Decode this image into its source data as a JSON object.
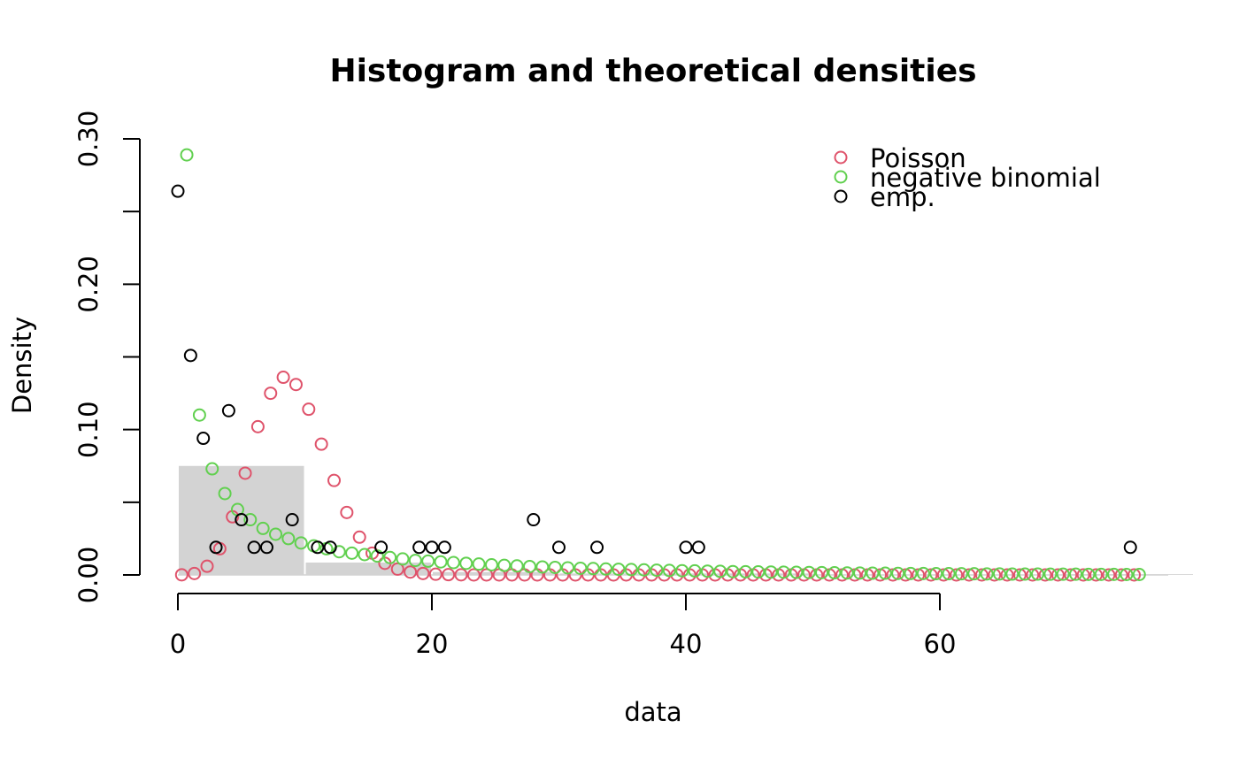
{
  "chart_data": {
    "type": "scatter",
    "title": "Histogram and theoretical densities",
    "xlabel": "data",
    "ylabel": "Density",
    "xlim": [
      -3,
      78
    ],
    "ylim": [
      0,
      0.3
    ],
    "x_ticks": [
      0,
      20,
      40,
      60
    ],
    "x_tick_labels": [
      "0",
      "20",
      "40",
      "60"
    ],
    "y_ticks": [
      0,
      0.05,
      0.1,
      0.15,
      0.2,
      0.25,
      0.3
    ],
    "y_tick_labels": [
      "0.00",
      "",
      "0.10",
      "",
      "0.20",
      "",
      "0.30"
    ],
    "grid": false,
    "legend_position": "top-right",
    "histogram": {
      "color": "#d3d3d3",
      "bins": [
        {
          "x0": 0,
          "x1": 10,
          "density": 0.075
        },
        {
          "x0": 10,
          "x1": 20,
          "density": 0.0085
        },
        {
          "x0": 20,
          "x1": 30,
          "density": 0.002
        },
        {
          "x0": 30,
          "x1": 40,
          "density": 0.001
        },
        {
          "x0": 40,
          "x1": 50,
          "density": 0.001
        },
        {
          "x0": 50,
          "x1": 60,
          "density": 0.0
        },
        {
          "x0": 60,
          "x1": 70,
          "density": 0.0
        },
        {
          "x0": 70,
          "x1": 80,
          "density": 0.0005
        }
      ]
    },
    "series": [
      {
        "name": "Poisson",
        "color": "#df536b",
        "x_offset": 0.3,
        "x_start": 0,
        "x_end": 75,
        "values": [
          0.0001,
          0.001,
          0.006,
          0.018,
          0.04,
          0.07,
          0.102,
          0.125,
          0.136,
          0.131,
          0.114,
          0.09,
          0.065,
          0.043,
          0.026,
          0.015,
          0.008,
          0.004,
          0.002,
          0.001,
          0.0005,
          0.0002,
          0.0001,
          0,
          0,
          0,
          0,
          0,
          0,
          0,
          0,
          0,
          0,
          0,
          0,
          0,
          0,
          0,
          0,
          0,
          0,
          0,
          0,
          0,
          0,
          0,
          0,
          0,
          0,
          0,
          0,
          0,
          0,
          0,
          0,
          0,
          0,
          0,
          0,
          0,
          0,
          0,
          0,
          0,
          0,
          0,
          0,
          0,
          0,
          0,
          0,
          0,
          0,
          0,
          0,
          0
        ]
      },
      {
        "name": "negative binomial",
        "color": "#61d04f",
        "x_offset": 0.7,
        "x_start": 0,
        "x_end": 75,
        "values": [
          0.289,
          0.11,
          0.073,
          0.056,
          0.045,
          0.038,
          0.032,
          0.028,
          0.025,
          0.022,
          0.02,
          0.018,
          0.016,
          0.015,
          0.014,
          0.013,
          0.012,
          0.011,
          0.01,
          0.0095,
          0.009,
          0.0085,
          0.008,
          0.0075,
          0.007,
          0.0066,
          0.0062,
          0.0058,
          0.0055,
          0.0052,
          0.0049,
          0.0046,
          0.0044,
          0.0041,
          0.0039,
          0.0037,
          0.0035,
          0.0033,
          0.0031,
          0.0029,
          0.0028,
          0.0026,
          0.0025,
          0.0023,
          0.0022,
          0.0021,
          0.002,
          0.0019,
          0.0018,
          0.0017,
          0.0016,
          0.0015,
          0.0014,
          0.0013,
          0.0012,
          0.0012,
          0.0011,
          0.001,
          0.001,
          0.0009,
          0.0009,
          0.0008,
          0.0008,
          0.0007,
          0.0007,
          0.0006,
          0.0006,
          0.0006,
          0.0005,
          0.0005,
          0.0005,
          0.0004,
          0.0004,
          0.0004,
          0.0003,
          0.0003
        ]
      },
      {
        "name": "emp.",
        "color": "#000000",
        "points": [
          [
            0,
            0.264
          ],
          [
            1,
            0.151
          ],
          [
            2,
            0.094
          ],
          [
            3,
            0.019
          ],
          [
            4,
            0.113
          ],
          [
            5,
            0.038
          ],
          [
            6,
            0.019
          ],
          [
            7,
            0.019
          ],
          [
            9,
            0.038
          ],
          [
            11,
            0.019
          ],
          [
            12,
            0.019
          ],
          [
            16,
            0.019
          ],
          [
            19,
            0.019
          ],
          [
            20,
            0.019
          ],
          [
            21,
            0.019
          ],
          [
            28,
            0.038
          ],
          [
            30,
            0.019
          ],
          [
            33,
            0.019
          ],
          [
            40,
            0.019
          ],
          [
            41,
            0.019
          ],
          [
            75,
            0.019
          ]
        ]
      }
    ]
  }
}
